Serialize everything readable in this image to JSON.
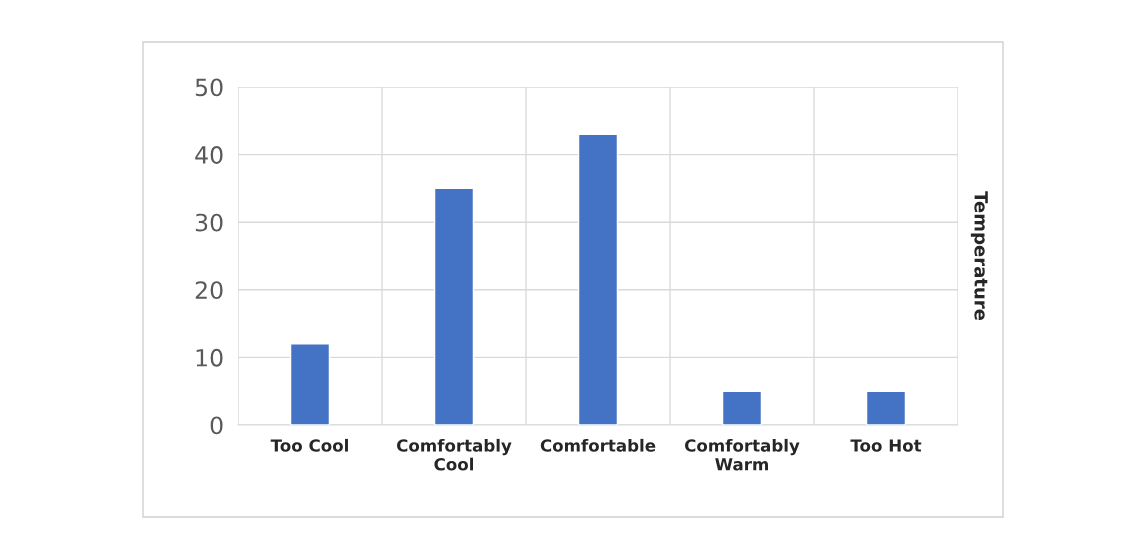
{
  "chart_data": {
    "type": "bar",
    "ylabel": "Temperature",
    "categories": [
      "Too Cool",
      "Comfortably\nCool",
      "Comfortable",
      "Comfortably\nWarm",
      "Too Hot"
    ],
    "values": [
      12,
      35,
      43,
      5,
      5
    ],
    "color": "#4472c4",
    "ylim": [
      0,
      50
    ],
    "yticks": [
      0,
      10,
      20,
      30,
      40,
      50
    ],
    "grid": true,
    "legend": false
  }
}
